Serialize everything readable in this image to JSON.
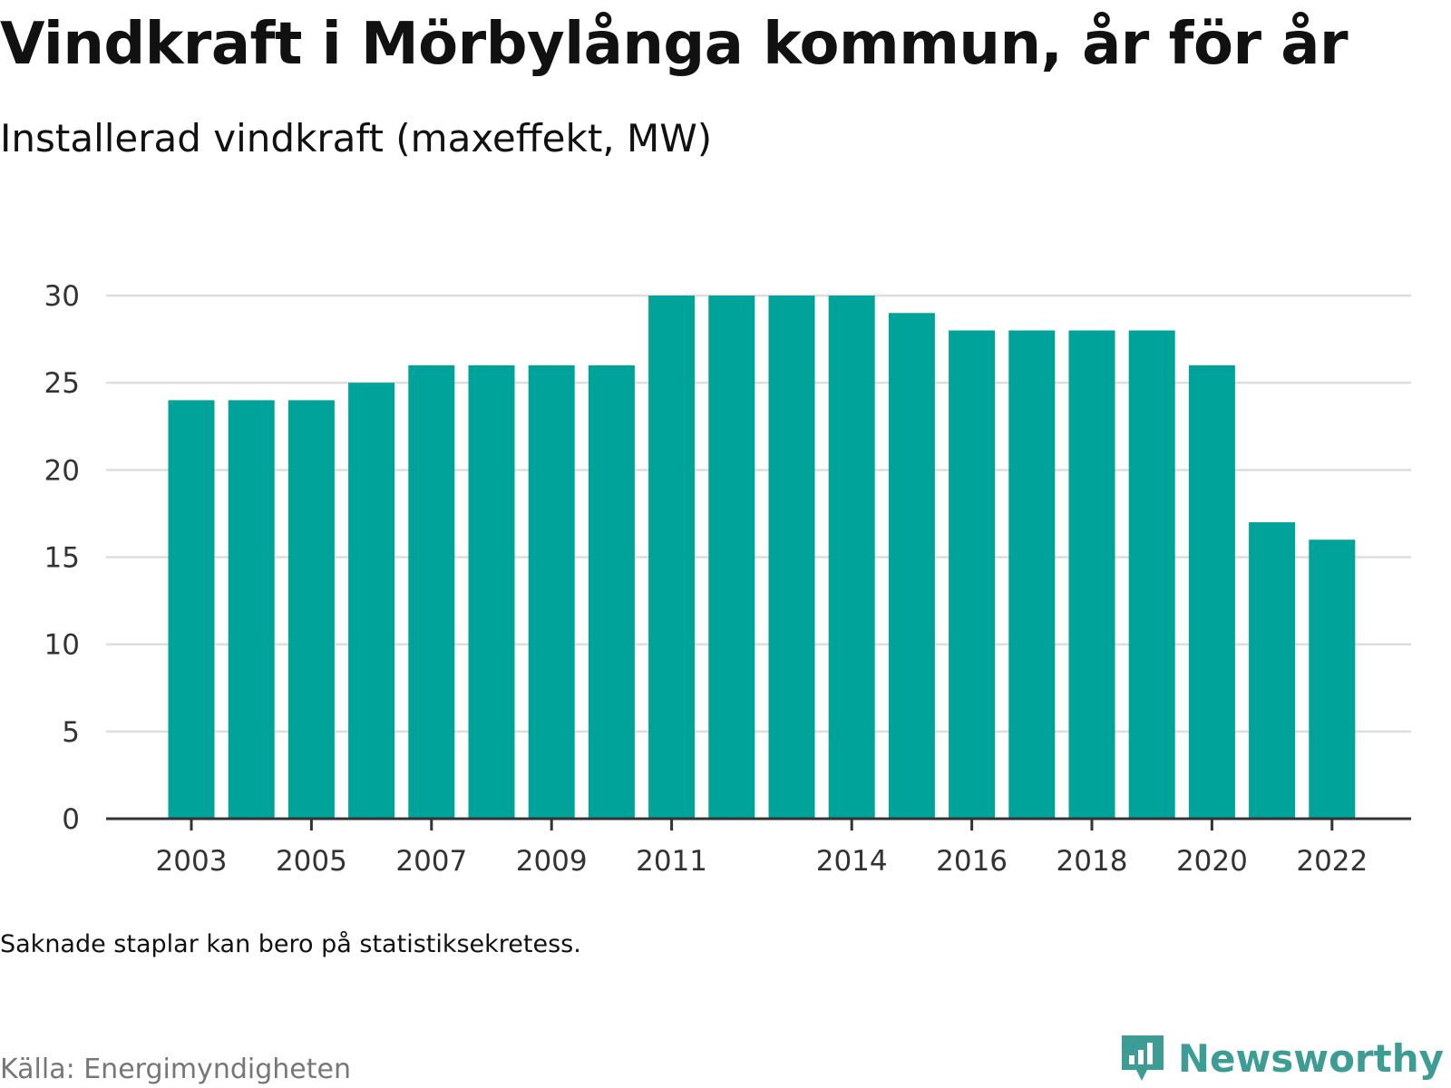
{
  "header": {
    "title": "Vindkraft i Mörbylånga kommun, år för år",
    "subtitle": "Installerad vindkraft (maxeffekt, MW)"
  },
  "footer": {
    "note": "Saknade staplar kan bero på statistiksekretess.",
    "source": "Källa: Energimyndigheten",
    "brand": "Newsworthy",
    "brand_icon": "bar-chart-speech-bubble-icon"
  },
  "colors": {
    "bar": "#00a39a",
    "grid": "#dddddd",
    "axis": "#333333",
    "brand": "#3d9c93"
  },
  "chart_data": {
    "type": "bar",
    "title": "Vindkraft i Mörbylånga kommun, år för år",
    "subtitle": "Installerad vindkraft (maxeffekt, MW)",
    "xlabel": "",
    "ylabel": "",
    "categories": [
      2003,
      2004,
      2005,
      2006,
      2007,
      2008,
      2009,
      2010,
      2011,
      2012,
      2013,
      2014,
      2015,
      2016,
      2017,
      2018,
      2019,
      2020,
      2021,
      2022
    ],
    "values": [
      24,
      24,
      24,
      25,
      26,
      26,
      26,
      26,
      30,
      30,
      30,
      30,
      29,
      28,
      28,
      28,
      28,
      26,
      17,
      16
    ],
    "x_tick_labels": [
      "2003",
      "2005",
      "2007",
      "2009",
      "2011",
      "2014",
      "2016",
      "2018",
      "2020",
      "2022"
    ],
    "y_ticks": [
      0,
      5,
      10,
      15,
      20,
      25,
      30
    ],
    "ylim": [
      0,
      30
    ],
    "grid": "horizontal",
    "legend": "none"
  }
}
